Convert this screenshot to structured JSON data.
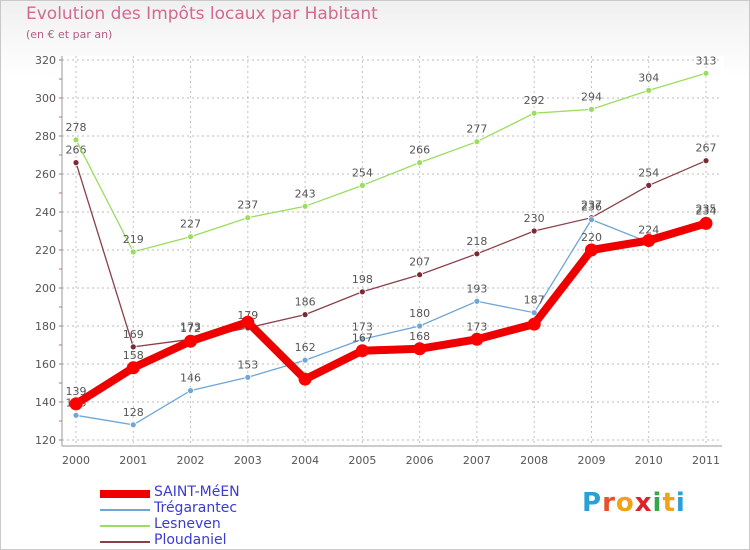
{
  "header": {
    "title": "Evolution des Impôts locaux par Habitant",
    "subtitle": "(en € et par an)"
  },
  "brand": {
    "text": "Proxiti",
    "letters": [
      "P",
      "r",
      "o",
      "x",
      "i",
      "t",
      "i"
    ],
    "letter_colors": [
      "#2aa1d6",
      "#e8502a",
      "#f1a21b",
      "#d9242c",
      "#3aa64a",
      "#f1a21b",
      "#2aa1d6"
    ]
  },
  "chart_data": {
    "type": "line",
    "title": "Evolution des Impôts locaux par Habitant",
    "subtitle": "(en € et par an)",
    "xlabel": "",
    "ylabel": "",
    "ylim": [
      120,
      320
    ],
    "y_ticks": [
      120,
      140,
      160,
      180,
      200,
      220,
      240,
      260,
      280,
      300,
      320
    ],
    "categories": [
      "2000",
      "2001",
      "2002",
      "2003",
      "2004",
      "2005",
      "2006",
      "2007",
      "2008",
      "2009",
      "2010",
      "2011"
    ],
    "grid": "horizontal dashed",
    "legend_position": "bottom-left",
    "series": [
      {
        "name": "SAINT-MéEN",
        "color": "#ff0000",
        "line_color": "#ee0000",
        "values": [
          139,
          158,
          172,
          182,
          152,
          167,
          168,
          173,
          181,
          220,
          225,
          234
        ],
        "labels": [
          "139",
          "158",
          "172",
          "",
          "",
          "167",
          "168",
          "173",
          "",
          "220",
          "",
          "234"
        ],
        "emphasis": true
      },
      {
        "name": "Trégarantec",
        "color": "#6ea6d8",
        "line_color": "#6ea6d8",
        "values": [
          133,
          128,
          146,
          153,
          162,
          173,
          180,
          193,
          187,
          236,
          224,
          235
        ],
        "labels": [
          "133",
          "128",
          "146",
          "153",
          "162",
          "173",
          "180",
          "193",
          "187",
          "236",
          "224",
          "235"
        ],
        "emphasis": false
      },
      {
        "name": "Lesneven",
        "color": "#9bdd5e",
        "line_color": "#9bdd5e",
        "values": [
          278,
          219,
          227,
          237,
          243,
          254,
          266,
          277,
          292,
          294,
          304,
          313
        ],
        "labels": [
          "278",
          "219",
          "227",
          "237",
          "243",
          "254",
          "266",
          "277",
          "292",
          "294",
          "304",
          "313"
        ],
        "emphasis": false
      },
      {
        "name": "Ploudaniel",
        "color": "#7a2a36",
        "line_color": "#8a4048",
        "values": [
          266,
          169,
          173,
          179,
          186,
          198,
          207,
          218,
          230,
          237,
          254,
          267
        ],
        "labels": [
          "266",
          "169",
          "173",
          "179",
          "186",
          "198",
          "207",
          "218",
          "230",
          "237",
          "254",
          "267"
        ],
        "emphasis": false
      }
    ]
  }
}
